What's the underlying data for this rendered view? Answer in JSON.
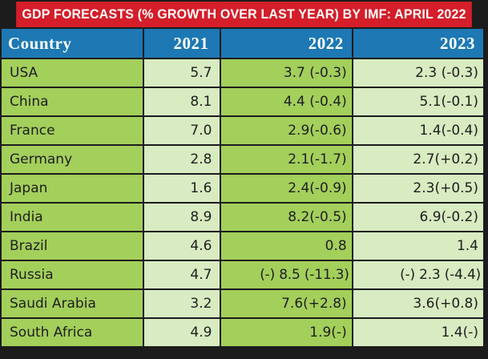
{
  "title": "GDP FORECASTS (% GROWTH OVER LAST YEAR) BY IMF: APRIL 2022",
  "headers": {
    "country": "Country",
    "y2021": "2021",
    "y2022": "2022",
    "y2023": "2023"
  },
  "rows": [
    {
      "country": "USA",
      "y2021": "5.7",
      "y2022": "3.7 (-0.3)",
      "y2023": "2.3  (-0.3)"
    },
    {
      "country": "China",
      "y2021": "8.1",
      "y2022": "4.4 (-0.4)",
      "y2023": "5.1(-0.1)"
    },
    {
      "country": "France",
      "y2021": "7.0",
      "y2022": "2.9(-0.6)",
      "y2023": "1.4(-0.4)"
    },
    {
      "country": "Germany",
      "y2021": "2.8",
      "y2022": "2.1(-1.7)",
      "y2023": "2.7(+0.2)"
    },
    {
      "country": "Japan",
      "y2021": "1.6",
      "y2022": "2.4(-0.9)",
      "y2023": "2.3(+0.5)"
    },
    {
      "country": "India",
      "y2021": "8.9",
      "y2022": "8.2(-0.5)",
      "y2023": "6.9(-0.2)"
    },
    {
      "country": "Brazil",
      "y2021": "4.6",
      "y2022": "0.8",
      "y2023": "1.4"
    },
    {
      "country": "Russia",
      "y2021": "4.7",
      "y2022": "(-) 8.5 (-11.3)",
      "y2023": "(-) 2.3 (-4.4)"
    },
    {
      "country": "Saudi Arabia",
      "y2021": "3.2",
      "y2022": "7.6(+2.8)",
      "y2023": "3.6(+0.8)"
    },
    {
      "country": "South Africa",
      "y2021": "4.9",
      "y2022": "1.9(-)",
      "y2023": "1.4(-)"
    }
  ],
  "colors": {
    "title_bg": "#d41e2a",
    "header_bg": "#1d78b4",
    "cell_dark_green": "#a3cf5b",
    "cell_light_green": "#d8ebc1",
    "border": "#1c1c1c"
  }
}
